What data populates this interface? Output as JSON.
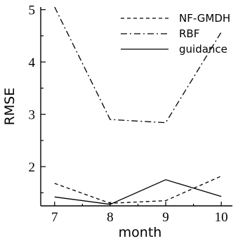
{
  "chart_data": {
    "type": "line",
    "xlabel": "month",
    "ylabel": "RMSE",
    "x": [
      7,
      8,
      9,
      10
    ],
    "x_ticks": [
      "7",
      "8",
      "9",
      "10"
    ],
    "y_ticks": [
      "2",
      "3",
      "4",
      "5"
    ],
    "xlim": [
      6.75,
      10.2
    ],
    "ylim": [
      1.25,
      5.05
    ],
    "grid": false,
    "legend_position": "top-right",
    "series": [
      {
        "name": "NF-GMDH",
        "dash": "dashed",
        "values": [
          1.68,
          1.3,
          1.35,
          1.82
        ]
      },
      {
        "name": "RBF",
        "dash": "dash-dot",
        "values": [
          5.05,
          2.9,
          2.84,
          4.57
        ]
      },
      {
        "name": "guidance",
        "dash": "solid",
        "values": [
          1.42,
          1.28,
          1.75,
          1.43
        ]
      }
    ]
  }
}
